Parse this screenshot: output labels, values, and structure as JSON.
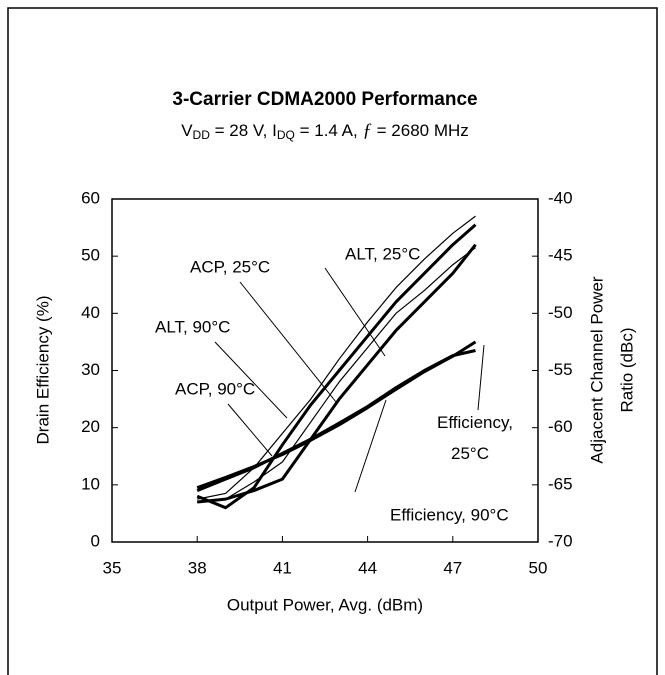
{
  "chart_data": {
    "type": "line",
    "title": "3-Carrier CDMA2000 Performance",
    "subtitle": [
      "V",
      "DD",
      " = 28 V,  I",
      "DQ",
      " = 1.4 A, ",
      "ƒ",
      " = 2680 MHz"
    ],
    "xlabel": "Output Power, Avg. (dBm)",
    "ylabel": "Drain Efficiency (%)",
    "y2label": [
      "Adjacent Channel Power",
      "Ratio (dBc)"
    ],
    "x": [
      38,
      39,
      40,
      41,
      42,
      43,
      44,
      45,
      46,
      47,
      47.8
    ],
    "xlim": [
      35,
      50
    ],
    "xticks": [
      35,
      38,
      41,
      44,
      47,
      50
    ],
    "ylim": [
      0,
      60
    ],
    "yticks": [
      0,
      10,
      20,
      30,
      40,
      50,
      60
    ],
    "y2lim": [
      -70,
      -40
    ],
    "y2ticks": [
      -70,
      -65,
      -60,
      -55,
      -50,
      -45,
      -40
    ],
    "grid": false,
    "series": [
      {
        "name": "Efficiency, 25°C",
        "color": "#000000",
        "values": [
          9.5,
          11.3,
          13.2,
          15.3,
          17.8,
          20.5,
          23.5,
          26.7,
          29.8,
          32.5,
          35
        ]
      },
      {
        "name": "Efficiency, 90°C",
        "color": "#000000",
        "values": [
          9,
          11,
          13,
          15.5,
          18,
          20.8,
          23.7,
          27,
          30,
          32.6,
          33.5
        ]
      },
      {
        "name": "ACP, 25°C",
        "color": "#000000",
        "axis": "y2",
        "values": [
          -66.25,
          -65.75,
          -63.5,
          -60.5,
          -57.5,
          -54,
          -50.75,
          -47.75,
          -45.25,
          -43,
          -41.5
        ]
      },
      {
        "name": "ACP, 90°C",
        "color": "#000000",
        "axis": "y2",
        "values": [
          -66,
          -67,
          -65.25,
          -61.5,
          -58,
          -55,
          -52,
          -49,
          -46.5,
          -44,
          -42.25
        ]
      },
      {
        "name": "ALT, 25°C",
        "color": "#000000",
        "axis": "y2",
        "values": [
          -66.5,
          -66.25,
          -64.75,
          -63,
          -59.5,
          -56,
          -53,
          -50,
          -48,
          -45.75,
          -44.25
        ]
      },
      {
        "name": "ALT, 90°C",
        "color": "#000000",
        "axis": "y2",
        "values": [
          -66.5,
          -66.25,
          -65.5,
          -64.5,
          -61,
          -57.5,
          -54.5,
          -51.5,
          -49,
          -46.5,
          -44
        ]
      }
    ]
  }
}
